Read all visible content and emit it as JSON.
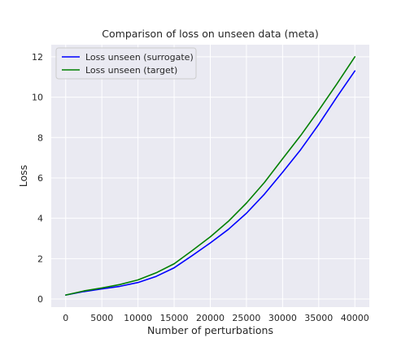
{
  "chart_data": {
    "type": "line",
    "title": "Comparison of loss on unseen data (meta)",
    "xlabel": "Number of perturbations",
    "ylabel": "Loss",
    "xlim": [
      -2000,
      42000
    ],
    "ylim": [
      -0.4,
      12.6
    ],
    "xticks": [
      0,
      5000,
      10000,
      15000,
      20000,
      25000,
      30000,
      35000,
      40000
    ],
    "yticks": [
      0,
      2,
      4,
      6,
      8,
      10,
      12
    ],
    "grid": true,
    "legend_position": "top-left",
    "series": [
      {
        "name": "Loss unseen (surrogate)",
        "color": "#0000ff",
        "x": [
          0,
          2500,
          5000,
          7500,
          10000,
          12500,
          15000,
          17500,
          20000,
          22500,
          25000,
          27500,
          30000,
          32500,
          35000,
          37500,
          40000
        ],
        "y": [
          0.2,
          0.37,
          0.5,
          0.63,
          0.82,
          1.12,
          1.55,
          2.15,
          2.78,
          3.45,
          4.25,
          5.2,
          6.28,
          7.4,
          8.65,
          10.0,
          11.3
        ]
      },
      {
        "name": "Loss unseen (target)",
        "color": "#008000",
        "x": [
          0,
          2500,
          5000,
          7500,
          10000,
          12500,
          15000,
          17500,
          20000,
          22500,
          25000,
          27500,
          30000,
          32500,
          35000,
          37500,
          40000
        ],
        "y": [
          0.2,
          0.4,
          0.55,
          0.72,
          0.95,
          1.3,
          1.75,
          2.4,
          3.08,
          3.85,
          4.75,
          5.78,
          6.95,
          8.1,
          9.35,
          10.65,
          12.0
        ]
      }
    ]
  }
}
